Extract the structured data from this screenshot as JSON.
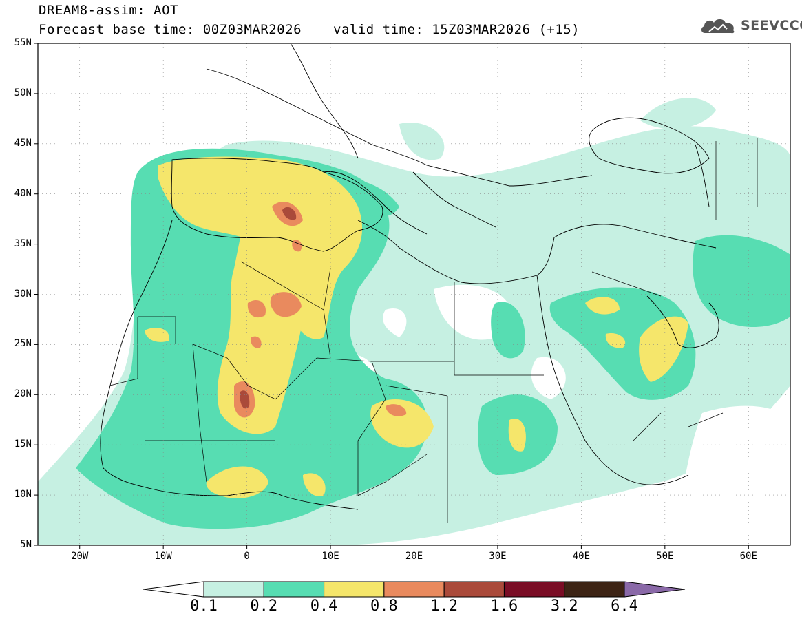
{
  "header": {
    "title_line1": "DREAM8-assim: AOT",
    "title_line2": "Forecast base time: 00Z03MAR2026",
    "valid_time": "valid time: 15Z03MAR2026 (+15)",
    "logo_text": "SEEVCCC"
  },
  "map": {
    "extent": {
      "lon_min": -25,
      "lon_max": 65,
      "lat_min": 5,
      "lat_max": 55
    },
    "lat_labels": [
      "55N",
      "50N",
      "45N",
      "40N",
      "35N",
      "30N",
      "25N",
      "20N",
      "15N",
      "10N",
      "5N"
    ],
    "lat_values": [
      55,
      50,
      45,
      40,
      35,
      30,
      25,
      20,
      15,
      10,
      5
    ],
    "lon_labels": [
      "20W",
      "10W",
      "0",
      "10E",
      "20E",
      "30E",
      "40E",
      "50E",
      "60E"
    ],
    "lon_values": [
      -20,
      -10,
      0,
      10,
      20,
      30,
      40,
      50,
      60
    ],
    "gridlines": true
  },
  "legend": {
    "labels": [
      "0.1",
      "0.2",
      "0.4",
      "0.8",
      "1.2",
      "1.6",
      "3.2",
      "6.4"
    ],
    "colors": [
      "#ffffff",
      "#c6f0e2",
      "#57ddb2",
      "#f5e66b",
      "#e98a5e",
      "#aa4a3a",
      "#7a0d25",
      "#3d2415",
      "#8a69a8"
    ]
  },
  "colors": {
    "low": "#c6f0e2",
    "mid": "#57ddb2",
    "high": "#f5e66b",
    "vhigh": "#e98a5e",
    "ext": "#aa4a3a",
    "border": "#000000"
  }
}
